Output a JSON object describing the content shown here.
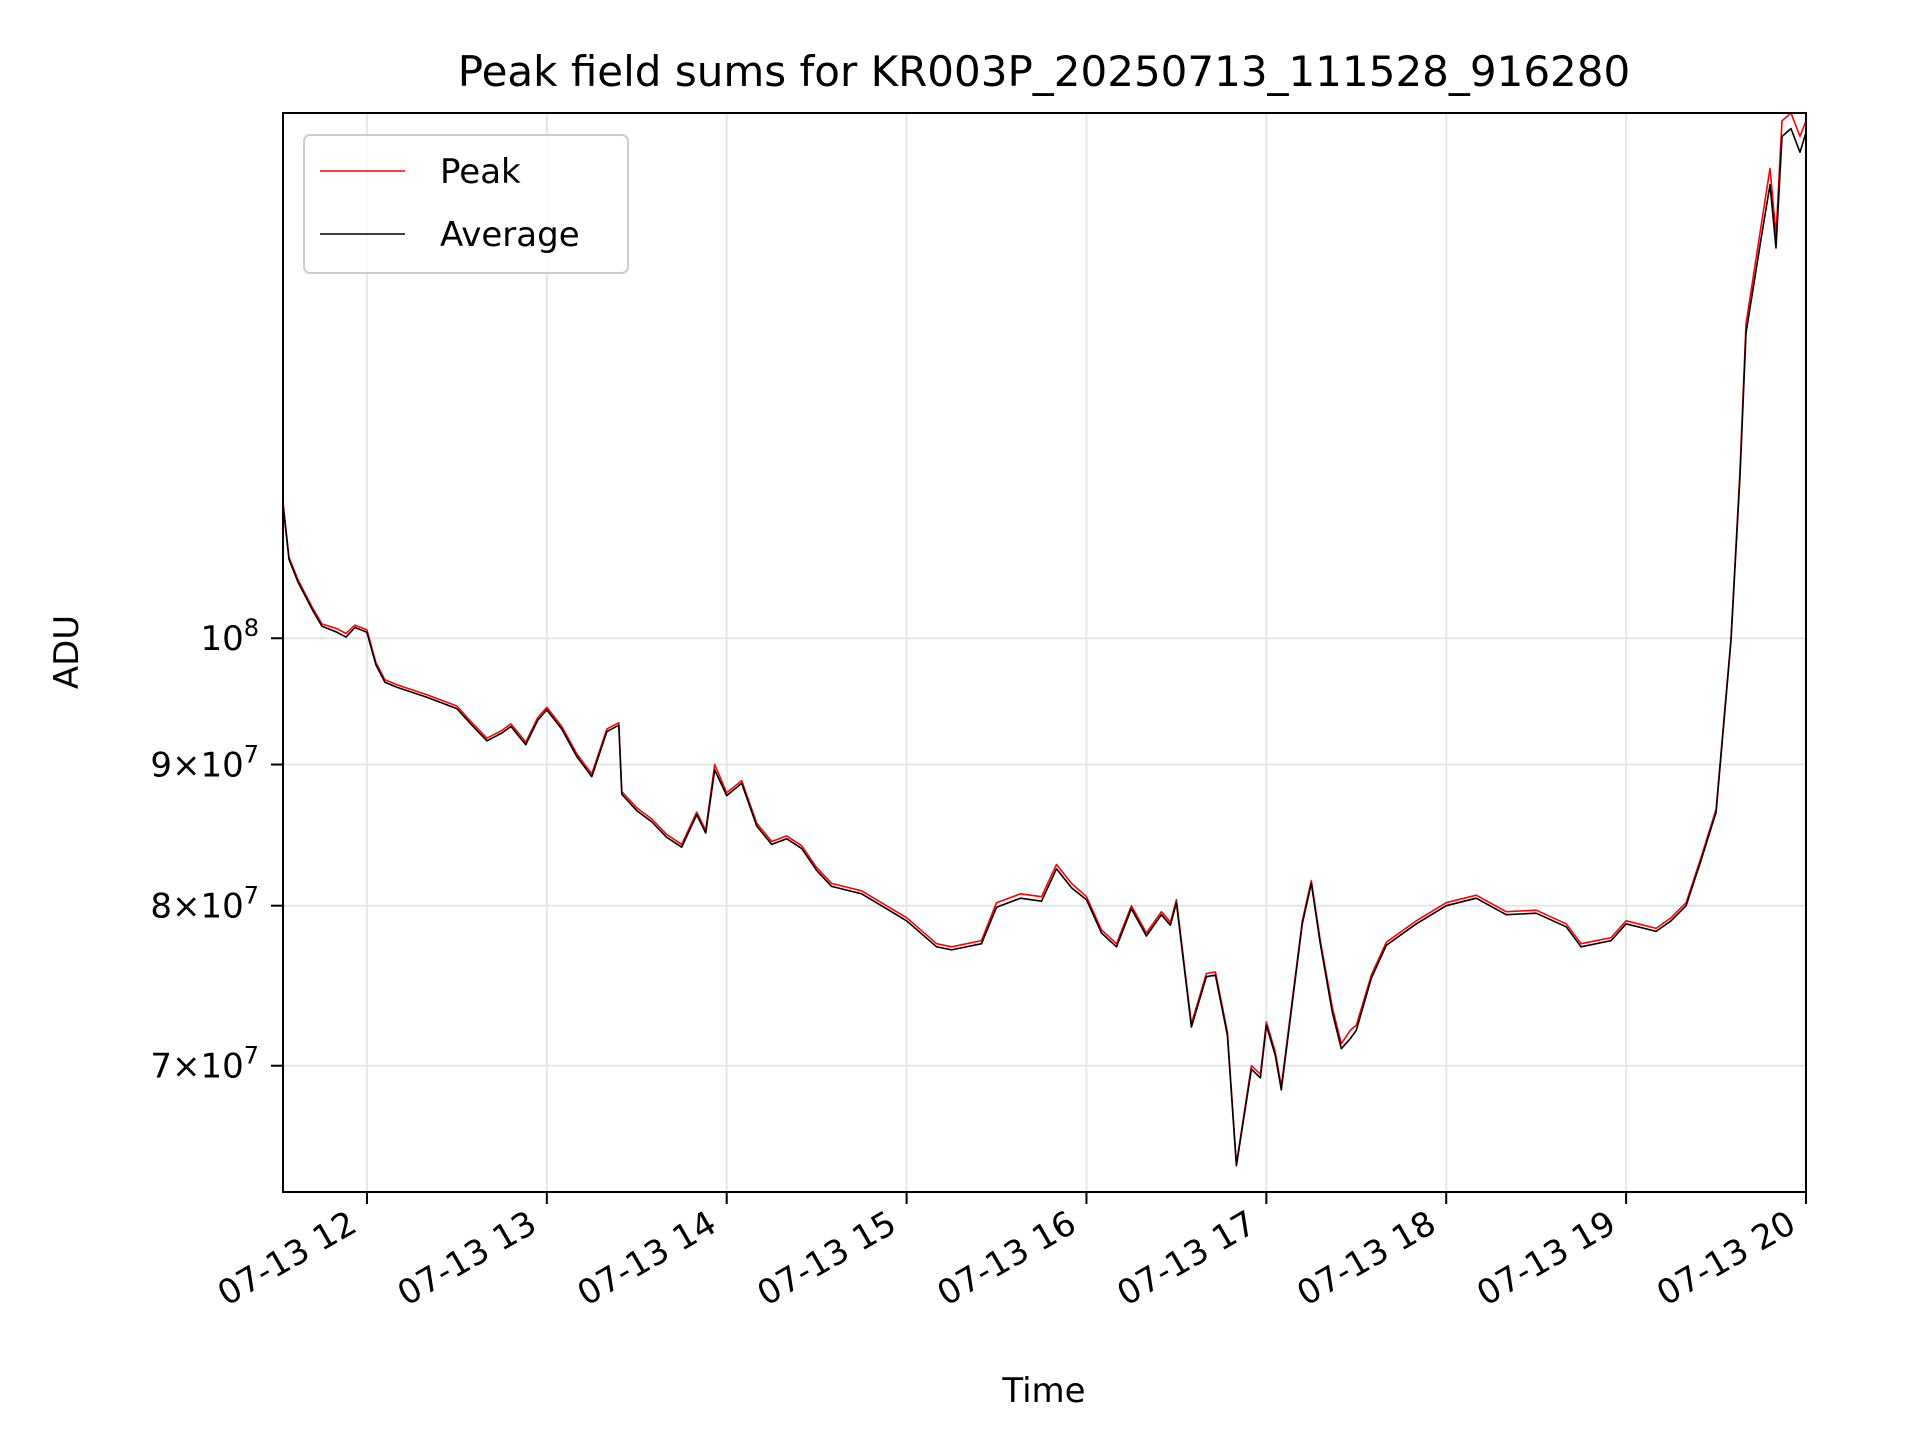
{
  "chart_data": {
    "type": "line",
    "title": "Peak field sums for KR003P_20250713_111528_916280",
    "xlabel": "Time",
    "ylabel": "ADU",
    "y_scale": "log",
    "grid": true,
    "legend_placement": "top-left",
    "xlim": [
      "2025-07-13T11:32",
      "2025-07-13T20:00"
    ],
    "ylim": [
      63000000,
      155000000
    ],
    "x_ticks": [
      {
        "t": "2025-07-13T12:00",
        "label": "07-13 12"
      },
      {
        "t": "2025-07-13T13:00",
        "label": "07-13 13"
      },
      {
        "t": "2025-07-13T14:00",
        "label": "07-13 14"
      },
      {
        "t": "2025-07-13T15:00",
        "label": "07-13 15"
      },
      {
        "t": "2025-07-13T16:00",
        "label": "07-13 16"
      },
      {
        "t": "2025-07-13T17:00",
        "label": "07-13 17"
      },
      {
        "t": "2025-07-13T18:00",
        "label": "07-13 18"
      },
      {
        "t": "2025-07-13T19:00",
        "label": "07-13 19"
      },
      {
        "t": "2025-07-13T20:00",
        "label": "07-13 20"
      }
    ],
    "y_ticks": [
      {
        "value": 70000000,
        "mant": "7",
        "exp": "7"
      },
      {
        "value": 80000000,
        "mant": "8",
        "exp": "7"
      },
      {
        "value": 90000000,
        "mant": "9",
        "exp": "7"
      },
      {
        "value": 100000000,
        "mant": "",
        "exp": "8"
      }
    ],
    "series": [
      {
        "name": "Peak",
        "color": "#ff0000",
        "x": [
          "2025-07-13T11:32",
          "2025-07-13T11:34",
          "2025-07-13T11:37",
          "2025-07-13T11:42",
          "2025-07-13T11:45",
          "2025-07-13T11:50",
          "2025-07-13T11:53",
          "2025-07-13T11:56",
          "2025-07-13T11:58",
          "2025-07-13T12:00",
          "2025-07-13T12:03",
          "2025-07-13T12:06",
          "2025-07-13T12:10",
          "2025-07-13T12:20",
          "2025-07-13T12:30",
          "2025-07-13T12:35",
          "2025-07-13T12:40",
          "2025-07-13T12:45",
          "2025-07-13T12:48",
          "2025-07-13T12:53",
          "2025-07-13T12:57",
          "2025-07-13T13:00",
          "2025-07-13T13:05",
          "2025-07-13T13:10",
          "2025-07-13T13:15",
          "2025-07-13T13:20",
          "2025-07-13T13:24",
          "2025-07-13T13:25",
          "2025-07-13T13:30",
          "2025-07-13T13:35",
          "2025-07-13T13:40",
          "2025-07-13T13:45",
          "2025-07-13T13:50",
          "2025-07-13T13:53",
          "2025-07-13T13:56",
          "2025-07-13T14:00",
          "2025-07-13T14:05",
          "2025-07-13T14:10",
          "2025-07-13T14:15",
          "2025-07-13T14:20",
          "2025-07-13T14:25",
          "2025-07-13T14:30",
          "2025-07-13T14:35",
          "2025-07-13T14:45",
          "2025-07-13T15:00",
          "2025-07-13T15:10",
          "2025-07-13T15:15",
          "2025-07-13T15:25",
          "2025-07-13T15:30",
          "2025-07-13T15:38",
          "2025-07-13T15:45",
          "2025-07-13T15:50",
          "2025-07-13T15:55",
          "2025-07-13T16:00",
          "2025-07-13T16:05",
          "2025-07-13T16:10",
          "2025-07-13T16:15",
          "2025-07-13T16:20",
          "2025-07-13T16:25",
          "2025-07-13T16:28",
          "2025-07-13T16:30",
          "2025-07-13T16:35",
          "2025-07-13T16:40",
          "2025-07-13T16:43",
          "2025-07-13T16:47",
          "2025-07-13T16:50",
          "2025-07-13T16:55",
          "2025-07-13T16:58",
          "2025-07-13T17:00",
          "2025-07-13T17:03",
          "2025-07-13T17:05",
          "2025-07-13T17:08",
          "2025-07-13T17:12",
          "2025-07-13T17:15",
          "2025-07-13T17:18",
          "2025-07-13T17:22",
          "2025-07-13T17:25",
          "2025-07-13T17:28",
          "2025-07-13T17:30",
          "2025-07-13T17:35",
          "2025-07-13T17:40",
          "2025-07-13T17:50",
          "2025-07-13T18:00",
          "2025-07-13T18:10",
          "2025-07-13T18:20",
          "2025-07-13T18:30",
          "2025-07-13T18:40",
          "2025-07-13T18:45",
          "2025-07-13T18:55",
          "2025-07-13T19:00",
          "2025-07-13T19:10",
          "2025-07-13T19:15",
          "2025-07-13T19:20",
          "2025-07-13T19:25",
          "2025-07-13T19:30",
          "2025-07-13T19:35",
          "2025-07-13T19:38",
          "2025-07-13T19:40",
          "2025-07-13T19:45",
          "2025-07-13T19:48",
          "2025-07-13T19:50",
          "2025-07-13T19:52",
          "2025-07-13T19:55",
          "2025-07-13T19:58",
          "2025-07-13T20:00"
        ],
        "values": [
          112000000,
          107000000,
          105000000,
          102500000,
          101200000,
          100800000,
          100400000,
          101100000,
          100900000,
          100700000,
          98000000,
          96600000,
          96200000,
          95400000,
          94500000,
          93200000,
          92000000,
          92600000,
          93100000,
          91700000,
          93600000,
          94400000,
          92900000,
          90800000,
          89300000,
          92700000,
          93200000,
          88000000,
          86800000,
          86000000,
          84900000,
          84200000,
          86500000,
          85200000,
          90000000,
          87900000,
          88800000,
          85700000,
          84400000,
          84800000,
          84100000,
          82600000,
          81500000,
          81000000,
          79200000,
          77500000,
          77300000,
          77700000,
          80200000,
          80800000,
          80600000,
          82800000,
          81500000,
          80600000,
          78400000,
          77500000,
          80000000,
          78200000,
          79600000,
          78900000,
          80400000,
          72500000,
          75600000,
          75700000,
          72000000,
          64500000,
          70000000,
          69500000,
          72600000,
          70800000,
          68800000,
          73000000,
          79000000,
          81700000,
          77700000,
          73500000,
          71300000,
          72100000,
          72400000,
          75500000,
          77600000,
          79000000,
          80200000,
          80700000,
          79600000,
          79700000,
          78800000,
          77500000,
          77900000,
          79000000,
          78500000,
          79200000,
          80200000,
          83300000,
          86700000,
          100000000,
          115000000,
          130000000,
          141000000,
          148000000,
          140000000,
          154000000,
          155000000,
          152000000,
          154000000
        ]
      },
      {
        "name": "Average",
        "color": "#000000",
        "x": [
          "2025-07-13T11:32",
          "2025-07-13T11:34",
          "2025-07-13T11:37",
          "2025-07-13T11:42",
          "2025-07-13T11:45",
          "2025-07-13T11:50",
          "2025-07-13T11:53",
          "2025-07-13T11:56",
          "2025-07-13T11:58",
          "2025-07-13T12:00",
          "2025-07-13T12:03",
          "2025-07-13T12:06",
          "2025-07-13T12:10",
          "2025-07-13T12:20",
          "2025-07-13T12:30",
          "2025-07-13T12:35",
          "2025-07-13T12:40",
          "2025-07-13T12:45",
          "2025-07-13T12:48",
          "2025-07-13T12:53",
          "2025-07-13T12:57",
          "2025-07-13T13:00",
          "2025-07-13T13:05",
          "2025-07-13T13:10",
          "2025-07-13T13:15",
          "2025-07-13T13:20",
          "2025-07-13T13:24",
          "2025-07-13T13:25",
          "2025-07-13T13:30",
          "2025-07-13T13:35",
          "2025-07-13T13:40",
          "2025-07-13T13:45",
          "2025-07-13T13:50",
          "2025-07-13T13:53",
          "2025-07-13T13:56",
          "2025-07-13T14:00",
          "2025-07-13T14:05",
          "2025-07-13T14:10",
          "2025-07-13T14:15",
          "2025-07-13T14:20",
          "2025-07-13T14:25",
          "2025-07-13T14:30",
          "2025-07-13T14:35",
          "2025-07-13T14:45",
          "2025-07-13T15:00",
          "2025-07-13T15:10",
          "2025-07-13T15:15",
          "2025-07-13T15:25",
          "2025-07-13T15:30",
          "2025-07-13T15:38",
          "2025-07-13T15:45",
          "2025-07-13T15:50",
          "2025-07-13T15:55",
          "2025-07-13T16:00",
          "2025-07-13T16:05",
          "2025-07-13T16:10",
          "2025-07-13T16:15",
          "2025-07-13T16:20",
          "2025-07-13T16:25",
          "2025-07-13T16:28",
          "2025-07-13T16:30",
          "2025-07-13T16:35",
          "2025-07-13T16:40",
          "2025-07-13T16:43",
          "2025-07-13T16:47",
          "2025-07-13T16:50",
          "2025-07-13T16:55",
          "2025-07-13T16:58",
          "2025-07-13T17:00",
          "2025-07-13T17:03",
          "2025-07-13T17:05",
          "2025-07-13T17:08",
          "2025-07-13T17:12",
          "2025-07-13T17:15",
          "2025-07-13T17:18",
          "2025-07-13T17:22",
          "2025-07-13T17:25",
          "2025-07-13T17:28",
          "2025-07-13T17:30",
          "2025-07-13T17:35",
          "2025-07-13T17:40",
          "2025-07-13T17:50",
          "2025-07-13T18:00",
          "2025-07-13T18:10",
          "2025-07-13T18:20",
          "2025-07-13T18:30",
          "2025-07-13T18:40",
          "2025-07-13T18:45",
          "2025-07-13T18:55",
          "2025-07-13T19:00",
          "2025-07-13T19:10",
          "2025-07-13T19:15",
          "2025-07-13T19:20",
          "2025-07-13T19:25",
          "2025-07-13T19:30",
          "2025-07-13T19:35",
          "2025-07-13T19:38",
          "2025-07-13T19:40",
          "2025-07-13T19:45",
          "2025-07-13T19:48",
          "2025-07-13T19:50",
          "2025-07-13T19:52",
          "2025-07-13T19:55",
          "2025-07-13T19:58",
          "2025-07-13T20:00"
        ],
        "values": [
          111800000,
          106800000,
          104800000,
          102300000,
          101000000,
          100500000,
          100100000,
          100900000,
          100700000,
          100500000,
          97800000,
          96400000,
          96000000,
          95200000,
          94300000,
          93000000,
          91800000,
          92400000,
          92900000,
          91500000,
          93400000,
          94200000,
          92700000,
          90600000,
          89100000,
          92500000,
          93000000,
          87800000,
          86600000,
          85800000,
          84700000,
          84000000,
          86300000,
          85000000,
          89600000,
          87700000,
          88600000,
          85500000,
          84200000,
          84600000,
          83900000,
          82400000,
          81300000,
          80800000,
          79000000,
          77300000,
          77100000,
          77500000,
          79900000,
          80500000,
          80300000,
          82500000,
          81200000,
          80400000,
          78200000,
          77300000,
          79800000,
          78000000,
          79400000,
          78700000,
          80200000,
          72300000,
          75400000,
          75500000,
          71800000,
          64400000,
          69800000,
          69300000,
          72400000,
          70600000,
          68600000,
          72800000,
          78800000,
          81500000,
          77500000,
          73200000,
          71000000,
          71600000,
          72100000,
          75300000,
          77400000,
          78800000,
          80000000,
          80500000,
          79400000,
          79500000,
          78600000,
          77300000,
          77700000,
          78800000,
          78300000,
          79000000,
          80000000,
          83100000,
          86500000,
          99800000,
          114500000,
          129000000,
          139500000,
          146000000,
          138500000,
          152000000,
          153000000,
          150000000,
          152500000
        ]
      }
    ]
  }
}
